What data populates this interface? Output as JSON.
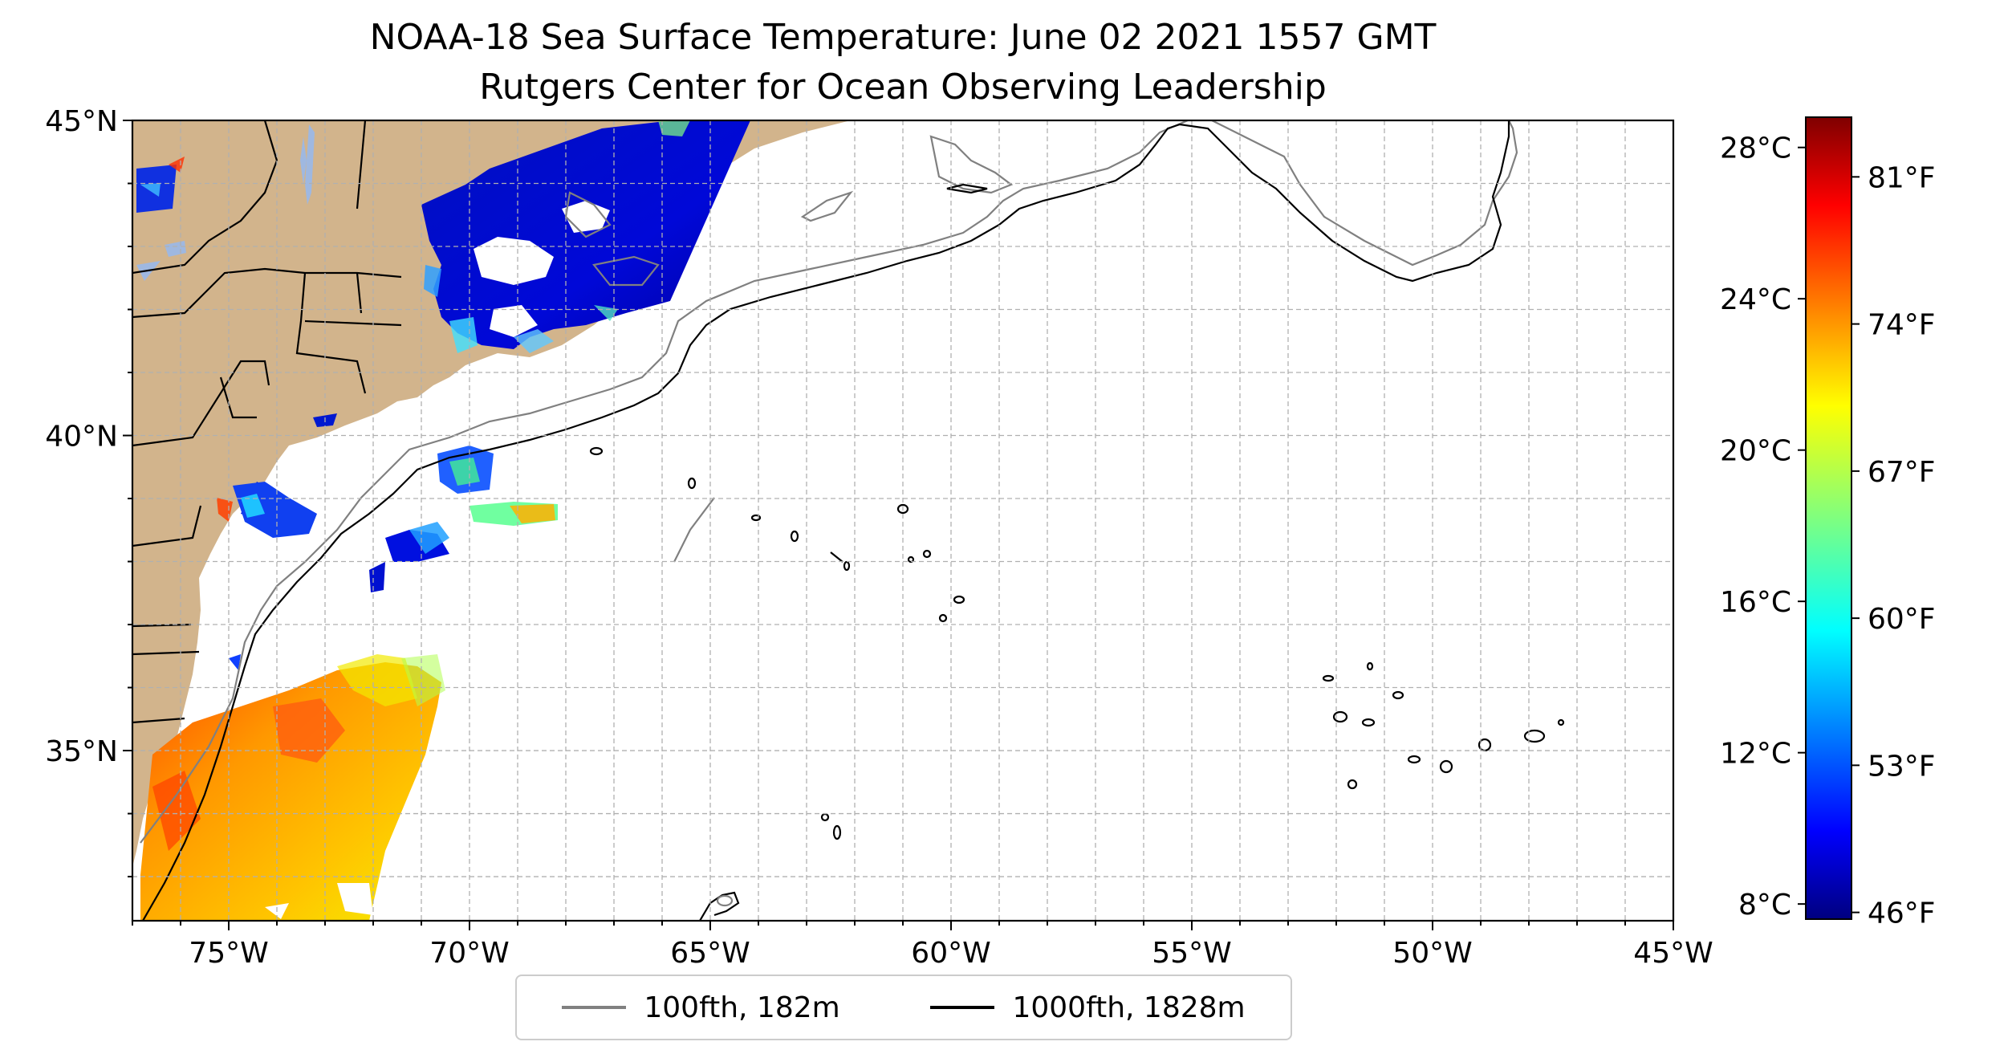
{
  "map": {
    "title": "NOAA-18 Sea Surface Temperature: June 02 2021 1557 GMT",
    "subtitle": "Rutgers Center for Ocean Observing Leadership",
    "lon_range": [
      -77,
      -45
    ],
    "lat_range": [
      32.3,
      45
    ],
    "lon_ticks": [
      {
        "value": -75,
        "label": "75°W"
      },
      {
        "value": -70,
        "label": "70°W"
      },
      {
        "value": -65,
        "label": "65°W"
      },
      {
        "value": -60,
        "label": "60°W"
      },
      {
        "value": -55,
        "label": "55°W"
      },
      {
        "value": -50,
        "label": "50°W"
      },
      {
        "value": -45,
        "label": "45°W"
      }
    ],
    "lat_ticks": [
      {
        "value": 45,
        "label": "45°N"
      },
      {
        "value": 40,
        "label": "40°N"
      },
      {
        "value": 35,
        "label": "35°N"
      }
    ],
    "land_color": "#d2b48c",
    "bathy_100_color": "#808080",
    "bathy_1000_color": "#000000"
  },
  "colorbar": {
    "celsius_ticks": [
      {
        "value": 28,
        "label": "28°C"
      },
      {
        "value": 24,
        "label": "24°C"
      },
      {
        "value": 20,
        "label": "20°C"
      },
      {
        "value": 16,
        "label": "16°C"
      },
      {
        "value": 12,
        "label": "12°C"
      },
      {
        "value": 8,
        "label": "8°C"
      }
    ],
    "fahrenheit_ticks": [
      {
        "value": 81,
        "label": "81°F"
      },
      {
        "value": 74,
        "label": "74°F"
      },
      {
        "value": 67,
        "label": "67°F"
      },
      {
        "value": 60,
        "label": "60°F"
      },
      {
        "value": 53,
        "label": "53°F"
      },
      {
        "value": 46,
        "label": "46°F"
      }
    ],
    "range_c": [
      7.6,
      28.8
    ],
    "colormap": "jet"
  },
  "legend": {
    "entries": [
      {
        "label": "100fth, 182m",
        "color": "#808080"
      },
      {
        "label": "1000fth, 1828m",
        "color": "#000000"
      }
    ]
  }
}
